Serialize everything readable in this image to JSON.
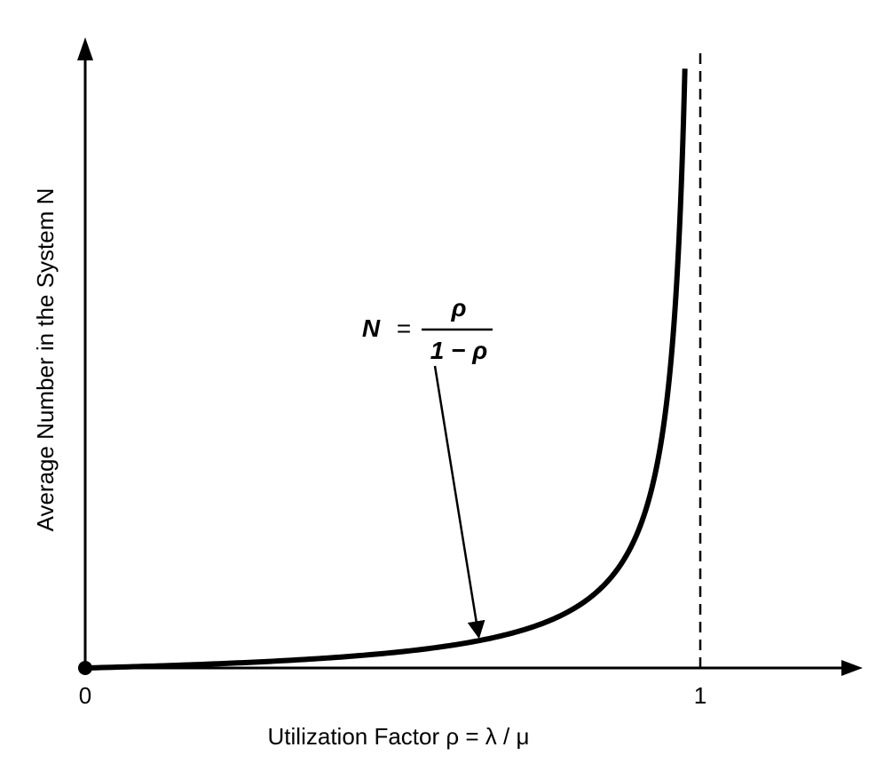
{
  "chart_data": {
    "type": "line",
    "title": "",
    "xlabel": "Utilization Factor ρ = λ / μ",
    "ylabel": "Average Number in the System N",
    "xlim": [
      0,
      1.25
    ],
    "ylim": [
      0,
      41
    ],
    "x_ticks": [
      "0",
      "1"
    ],
    "series": [
      {
        "x": [
          0,
          0.1,
          0.2,
          0.3,
          0.4,
          0.5,
          0.6,
          0.7,
          0.8,
          0.85,
          0.9,
          0.93,
          0.95,
          0.96,
          0.97,
          0.975
        ],
        "y": [
          0,
          0.111,
          0.25,
          0.429,
          0.667,
          1.0,
          1.5,
          2.333,
          4.0,
          5.667,
          9.0,
          13.29,
          19.0,
          24.0,
          32.33,
          39.0
        ]
      }
    ],
    "asymptote_x": 1,
    "annotation": {
      "lhs": "N",
      "eq": "=",
      "numerator": "ρ",
      "denominator": "1 − ρ",
      "target_x": 0.64
    },
    "grid": false,
    "legend": "none"
  }
}
